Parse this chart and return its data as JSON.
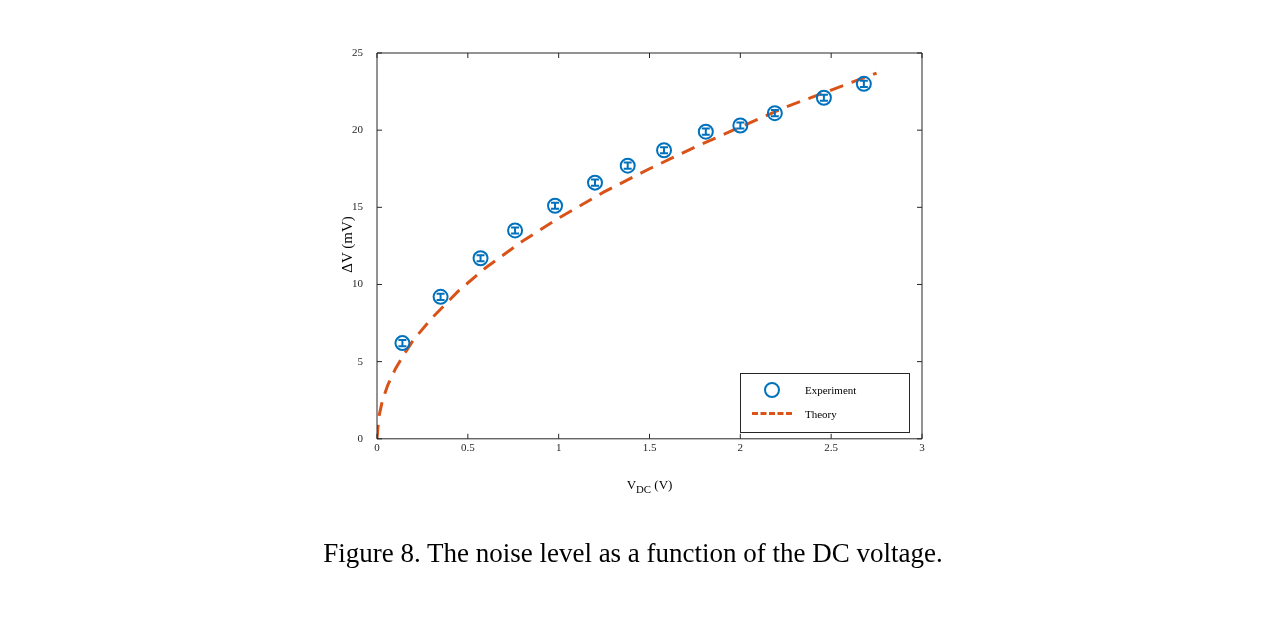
{
  "chart_data": {
    "type": "scatter",
    "xlabel": "V$_{DC}$ (V)",
    "ylabel": "ΔV (mV)",
    "annotations": [
      "Figure 8. The noise level as a function of the DC voltage."
    ],
    "xlim": [
      0,
      3
    ],
    "xticks": [
      0,
      0.5,
      1,
      1.5,
      2,
      2.5,
      3
    ],
    "ylim": [
      0,
      25
    ],
    "yticks": [
      0,
      5,
      10,
      15,
      20,
      25
    ],
    "legend": "bottom right",
    "series": [
      {
        "name": "Experiment",
        "color": "#0072bd",
        "marker": "circle",
        "x": [
          0.14,
          0.35,
          0.57,
          0.76,
          0.98,
          1.2,
          1.38,
          1.58,
          1.81,
          2.0,
          2.19,
          2.46,
          2.68
        ],
        "values": [
          6.2,
          9.2,
          11.7,
          13.5,
          15.1,
          16.6,
          17.7,
          18.7,
          19.9,
          20.3,
          21.1,
          22.1,
          23.0
        ],
        "errors": [
          0.2,
          0.2,
          0.2,
          0.2,
          0.2,
          0.2,
          0.2,
          0.2,
          0.2,
          0.2,
          0.2,
          0.2,
          0.2
        ]
      },
      {
        "name": "Theory",
        "type": "line",
        "color": "#d95319",
        "marker": "none",
        "line_style": "dashed",
        "x": [
          0,
          0.01,
          0.03,
          0.06,
          0.1,
          0.15,
          0.2,
          0.3,
          0.45,
          0.6,
          0.8,
          1,
          1.25,
          1.5,
          1.75,
          2,
          2.25,
          2.5,
          2.75
        ],
        "values": [
          0,
          1.4,
          2.5,
          3.5,
          4.5,
          5.5,
          6.4,
          7.8,
          9.6,
          11.1,
          12.8,
          14.3,
          16.0,
          17.5,
          18.9,
          20.2,
          21.5,
          22.6,
          23.7
        ]
      }
    ]
  }
}
